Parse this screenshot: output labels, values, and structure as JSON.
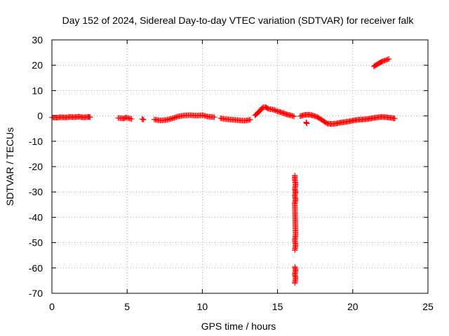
{
  "chart_data": {
    "type": "scatter",
    "title": "Day 152 of 2024, Sidereal Day-to-day VTEC variation (SDTVAR) for receiver falk",
    "xlabel": "GPS time / hours",
    "ylabel": "SDTVAR / TECUs",
    "xlim": [
      0,
      25
    ],
    "ylim": [
      -70,
      30
    ],
    "xticks": [
      0,
      5,
      10,
      15,
      20,
      25
    ],
    "yticks": [
      -70,
      -60,
      -50,
      -40,
      -30,
      -20,
      -10,
      0,
      10,
      20,
      30
    ],
    "grid": true,
    "marker": "+",
    "color": "#ff0000",
    "series": [
      {
        "name": "SDTVAR",
        "segments": [
          {
            "x": [
              0.0,
              0.3,
              0.6,
              0.9,
              1.2,
              1.5,
              1.8,
              2.1,
              2.4,
              2.55
            ],
            "y": [
              -0.6,
              -0.7,
              -0.5,
              -0.6,
              -0.4,
              -0.5,
              -0.3,
              -0.6,
              -0.4,
              -0.5
            ]
          },
          {
            "x": [
              4.4,
              4.8,
              4.9,
              5.3
            ],
            "y": [
              -0.8,
              -1.0,
              -0.6,
              -1.2
            ]
          },
          {
            "x": [
              6.0,
              6.1
            ],
            "y": [
              -1.2,
              -1.5
            ]
          },
          {
            "x": [
              6.8,
              7.2,
              7.6,
              8.0,
              8.4,
              8.8,
              9.2,
              9.6,
              10.0,
              10.4,
              10.8
            ],
            "y": [
              -1.4,
              -1.8,
              -1.6,
              -1.0,
              -0.2,
              0.2,
              0.3,
              0.1,
              0.3,
              -0.3,
              -0.5
            ]
          },
          {
            "x": [
              11.2,
              11.6,
              12.0,
              12.4,
              12.8,
              13.2
            ],
            "y": [
              -0.9,
              -1.3,
              -1.5,
              -1.7,
              -1.9,
              -1.5
            ]
          },
          {
            "x": [
              13.5,
              13.8,
              14.0,
              14.2,
              14.4,
              14.6,
              14.8,
              15.0,
              15.3,
              15.6,
              15.9,
              16.1
            ],
            "y": [
              0.2,
              1.8,
              3.3,
              3.5,
              2.8,
              2.6,
              2.3,
              1.8,
              1.3,
              0.6,
              0.2,
              -0.2
            ]
          },
          {
            "x": [
              16.5,
              16.8,
              17.1,
              17.4,
              17.7,
              18.0,
              18.3,
              18.6,
              18.9,
              19.2,
              19.5,
              19.8,
              20.1,
              20.4,
              20.7,
              21.0,
              21.3,
              21.6,
              21.9,
              22.2,
              22.5,
              22.8
            ],
            "y": [
              -0.1,
              0.4,
              0.5,
              0.1,
              -0.6,
              -1.8,
              -3.0,
              -3.2,
              -3.0,
              -2.6,
              -2.4,
              -2.1,
              -1.7,
              -1.5,
              -1.4,
              -1.2,
              -0.9,
              -0.6,
              -0.4,
              -0.5,
              -0.7,
              -1.0
            ]
          },
          {
            "x": [
              16.9,
              16.95
            ],
            "y": [
              -2.5,
              -3.0
            ]
          },
          {
            "x": [
              21.4,
              21.6,
              21.8,
              22.0,
              22.2,
              22.4
            ],
            "y": [
              19.5,
              20.3,
              21.0,
              21.6,
              22.0,
              22.5
            ]
          },
          {
            "x": [
              16.15,
              16.15,
              16.2,
              16.15,
              16.2,
              16.15,
              16.2,
              16.15,
              16.2,
              16.15,
              16.2,
              16.15
            ],
            "y": [
              -23.5,
              -25.0,
              -27.0,
              -29.0,
              -30.0,
              -31.5,
              -33.0,
              -34.5,
              -47.0,
              -49.0,
              -51.0,
              -53.0
            ]
          },
          {
            "x": [
              16.15,
              16.2,
              16.15,
              16.2,
              16.15
            ],
            "y": [
              -59.5,
              -61.0,
              -62.5,
              -64.0,
              -66.0
            ]
          }
        ]
      }
    ]
  }
}
